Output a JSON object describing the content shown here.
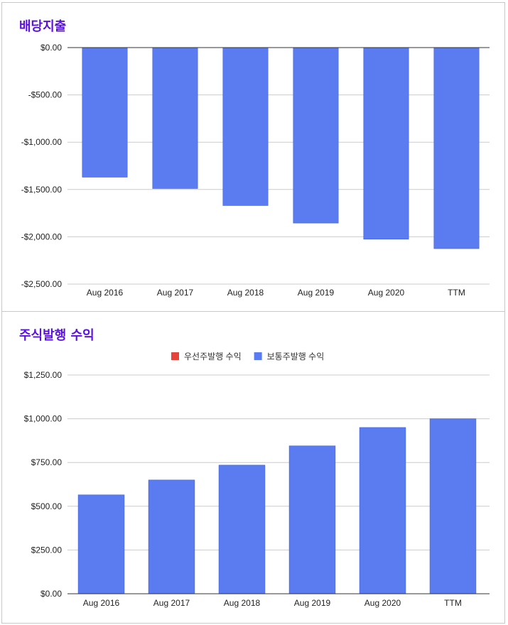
{
  "chart_data": [
    {
      "type": "bar",
      "title": "배당지출",
      "categories": [
        "Aug 2016",
        "Aug 2017",
        "Aug 2018",
        "Aug 2019",
        "Aug 2020",
        "TTM"
      ],
      "series": [
        {
          "values": [
            -1370,
            -1490,
            -1670,
            -1855,
            -2025,
            -2125
          ]
        }
      ],
      "ylim": [
        -2500,
        0
      ],
      "yticks": [
        0,
        -500,
        -1000,
        -1500,
        -2000,
        -2500
      ],
      "ytick_labels": [
        "$0.00",
        "-$500.00",
        "-$1,000.00",
        "-$1,500.00",
        "-$2,000.00",
        "-$2,500.00"
      ],
      "grid": true,
      "colors": [
        "#5b7bf1"
      ]
    },
    {
      "type": "bar",
      "title": "주식발행 수익",
      "categories": [
        "Aug 2016",
        "Aug 2017",
        "Aug 2018",
        "Aug 2019",
        "Aug 2020",
        "TTM"
      ],
      "series": [
        {
          "name": "우선주발행 수익",
          "values": [
            0,
            0,
            0,
            0,
            0,
            0
          ],
          "color": "#e8433a"
        },
        {
          "name": "보통주발행 수익",
          "values": [
            565,
            650,
            735,
            845,
            950,
            1000
          ],
          "color": "#5b7bf1"
        }
      ],
      "ylim": [
        0,
        1250
      ],
      "yticks": [
        0,
        250,
        500,
        750,
        1000,
        1250
      ],
      "ytick_labels": [
        "$0.00",
        "$250.00",
        "$500.00",
        "$750.00",
        "$1,000.00",
        "$1,250.00"
      ],
      "legend_position": "top",
      "grid": true
    }
  ]
}
